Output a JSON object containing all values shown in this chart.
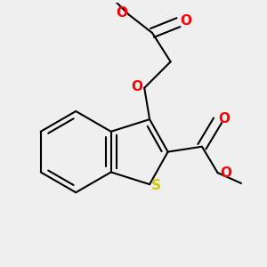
{
  "bg_color": "#efefef",
  "bond_color": "#000000",
  "O_color": "#ff0000",
  "S_color": "#cccc00",
  "bond_width": 1.5,
  "font_size": 10,
  "xlim": [
    0.0,
    1.0
  ],
  "ylim": [
    0.0,
    1.0
  ]
}
